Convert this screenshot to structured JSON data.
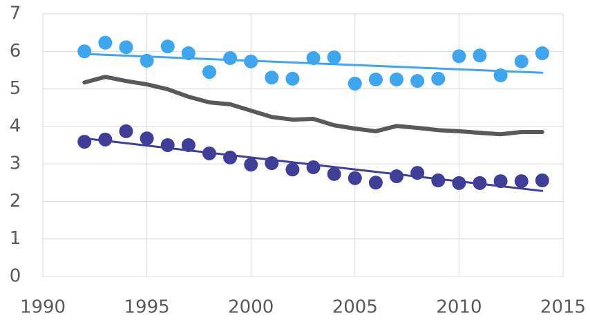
{
  "chart_data": {
    "type": "scatter",
    "xlim": [
      1990,
      2015
    ],
    "xticks": [
      1990,
      1995,
      2000,
      2005,
      2010,
      2015
    ],
    "ylim": [
      0,
      7
    ],
    "yticks": [
      0,
      1,
      2,
      3,
      4,
      5,
      6,
      7
    ],
    "grid": true,
    "series": [
      {
        "style": "line",
        "color": "#595959",
        "x": [
          1992,
          1993,
          1994,
          1995,
          1996,
          1997,
          1998,
          1999,
          2000,
          2001,
          2002,
          2003,
          2004,
          2005,
          2006,
          2007,
          2008,
          2009,
          2010,
          2011,
          2012,
          2013,
          2014
        ],
        "values": [
          5.17,
          5.32,
          5.21,
          5.12,
          4.99,
          4.79,
          4.64,
          4.59,
          4.42,
          4.25,
          4.18,
          4.2,
          4.03,
          3.94,
          3.87,
          4.01,
          3.96,
          3.9,
          3.87,
          3.83,
          3.79,
          3.85,
          3.85
        ]
      },
      {
        "style": "points",
        "color": "#3ea6ee",
        "x": [
          1992,
          1993,
          1994,
          1995,
          1996,
          1997,
          1998,
          1999,
          2000,
          2001,
          2002,
          2003,
          2004,
          2005,
          2006,
          2007,
          2008,
          2009,
          2010,
          2011,
          2012,
          2013,
          2014
        ],
        "values": [
          6.0,
          6.23,
          6.11,
          5.75,
          6.13,
          5.95,
          5.45,
          5.82,
          5.73,
          5.3,
          5.27,
          5.82,
          5.84,
          5.14,
          5.25,
          5.25,
          5.21,
          5.27,
          5.87,
          5.89,
          5.36,
          5.73,
          5.95
        ]
      },
      {
        "style": "trend",
        "color": "#3ea6ee",
        "x": [
          1992,
          2014
        ],
        "values": [
          5.93,
          5.43
        ]
      },
      {
        "style": "points",
        "color": "#3f3f9a",
        "x": [
          1992,
          1993,
          1994,
          1995,
          1996,
          1997,
          1998,
          1999,
          2000,
          2001,
          2002,
          2003,
          2004,
          2005,
          2006,
          2007,
          2008,
          2009,
          2010,
          2011,
          2012,
          2013,
          2014
        ],
        "values": [
          3.59,
          3.65,
          3.87,
          3.68,
          3.5,
          3.5,
          3.28,
          3.17,
          2.98,
          3.02,
          2.85,
          2.91,
          2.73,
          2.62,
          2.5,
          2.67,
          2.76,
          2.56,
          2.49,
          2.49,
          2.54,
          2.54,
          2.56
        ]
      },
      {
        "style": "trend",
        "color": "#3f3f9a",
        "x": [
          1992,
          2014
        ],
        "values": [
          3.68,
          2.28
        ]
      }
    ]
  }
}
